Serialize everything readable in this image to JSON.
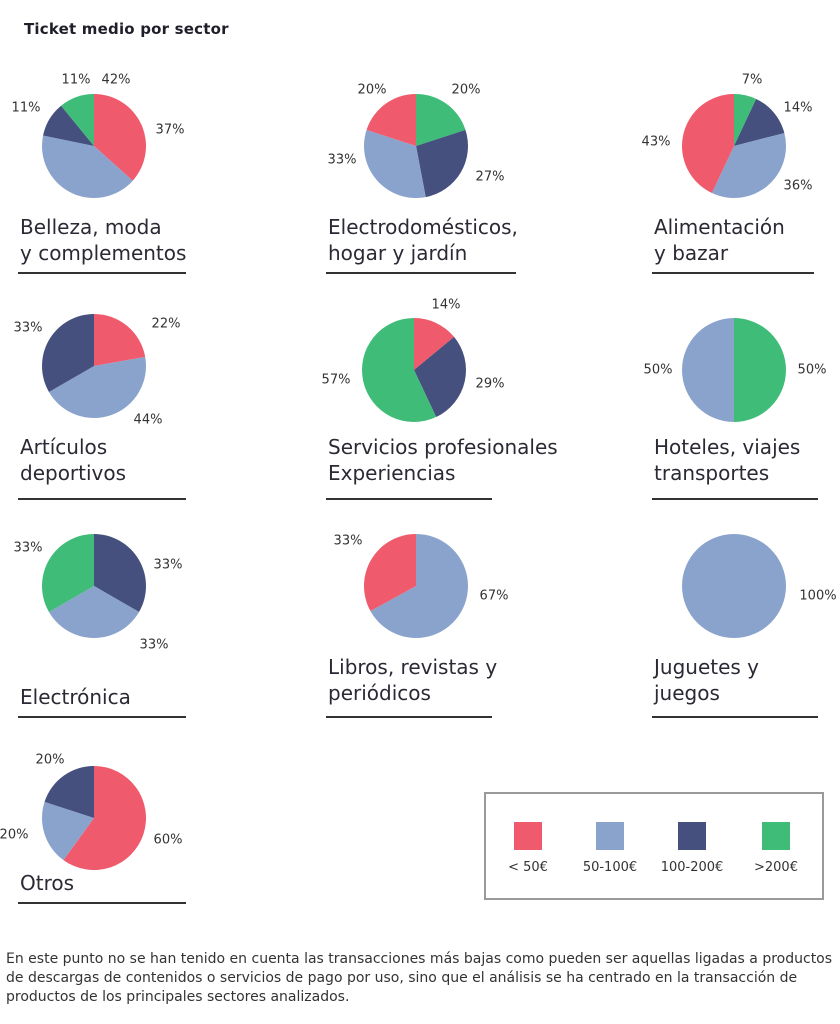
{
  "title": "Ticket medio por sector",
  "colors": {
    "<50": "#ef5b6c",
    "50-100": "#8aa3cc",
    "100-200": "#45507e",
    ">200": "#3fbd78"
  },
  "legend": [
    {
      "key": "<50",
      "label": "< 50€"
    },
    {
      "key": "50-100",
      "label": "50-100€"
    },
    {
      "key": "100-200",
      "label": "100-200€"
    },
    {
      "key": ">200",
      "label": ">200€"
    }
  ],
  "chart_data": [
    {
      "type": "pie",
      "sector": "Belleza, moda\ny complementos",
      "slices": [
        {
          "key": "<50",
          "value": 37,
          "label": "37%"
        },
        {
          "key": "50-100",
          "value": 42,
          "label": "42%"
        },
        {
          "key": "100-200",
          "value": 11,
          "label": "11%"
        },
        {
          "key": ">200",
          "value": 11,
          "label": "11%"
        }
      ]
    },
    {
      "type": "pie",
      "sector": "Electrodomésticos,\nhogar y jardín",
      "slices": [
        {
          "key": ">200",
          "value": 20,
          "label": "20%"
        },
        {
          "key": "100-200",
          "value": 27,
          "label": "27%"
        },
        {
          "key": "50-100",
          "value": 33,
          "label": "33%"
        },
        {
          "key": "<50",
          "value": 20,
          "label": "20%"
        }
      ]
    },
    {
      "type": "pie",
      "sector": "Alimentación\ny bazar",
      "slices": [
        {
          "key": ">200",
          "value": 7,
          "label": "7%"
        },
        {
          "key": "100-200",
          "value": 14,
          "label": "14%"
        },
        {
          "key": "50-100",
          "value": 36,
          "label": "36%"
        },
        {
          "key": "<50",
          "value": 43,
          "label": "43%"
        }
      ]
    },
    {
      "type": "pie",
      "sector": "Artículos\ndeportivos",
      "slices": [
        {
          "key": "<50",
          "value": 22,
          "label": "22%"
        },
        {
          "key": "50-100",
          "value": 44,
          "label": "44%"
        },
        {
          "key": "100-200",
          "value": 33,
          "label": "33%"
        }
      ]
    },
    {
      "type": "pie",
      "sector": "Servicios profesionales\nExperiencias",
      "slices": [
        {
          "key": "<50",
          "value": 14,
          "label": "14%"
        },
        {
          "key": "100-200",
          "value": 29,
          "label": "29%"
        },
        {
          "key": ">200",
          "value": 57,
          "label": "57%"
        }
      ]
    },
    {
      "type": "pie",
      "sector": "Hoteles, viajes\ntransportes",
      "slices": [
        {
          "key": ">200",
          "value": 50,
          "label": "50%"
        },
        {
          "key": "50-100",
          "value": 50,
          "label": "50%"
        }
      ]
    },
    {
      "type": "pie",
      "sector": "Electrónica",
      "slices": [
        {
          "key": "100-200",
          "value": 33,
          "label": "33%"
        },
        {
          "key": "50-100",
          "value": 33,
          "label": "33%"
        },
        {
          "key": ">200",
          "value": 33,
          "label": "33%"
        }
      ]
    },
    {
      "type": "pie",
      "sector": "Libros, revistas y\nperiódicos",
      "slices": [
        {
          "key": "50-100",
          "value": 67,
          "label": "67%"
        },
        {
          "key": "<50",
          "value": 33,
          "label": "33%"
        }
      ]
    },
    {
      "type": "pie",
      "sector": "Juguetes y\njuegos",
      "slices": [
        {
          "key": "50-100",
          "value": 100,
          "label": "100%"
        }
      ]
    },
    {
      "type": "pie",
      "sector": "Otros",
      "slices": [
        {
          "key": "<50",
          "value": 60,
          "label": "60%"
        },
        {
          "key": "50-100",
          "value": 20,
          "label": "20%"
        },
        {
          "key": "100-200",
          "value": 20,
          "label": "20%"
        }
      ]
    }
  ],
  "note": [
    "En este punto no se han tenido en cuenta las transacciones más bajas como pueden ser aquellas ligadas a productos",
    "de descargas de contenidos o servicios de pago por uso, sino que el análisis se ha centrado en la transacción de",
    "productos de los principales sectores analizados."
  ]
}
